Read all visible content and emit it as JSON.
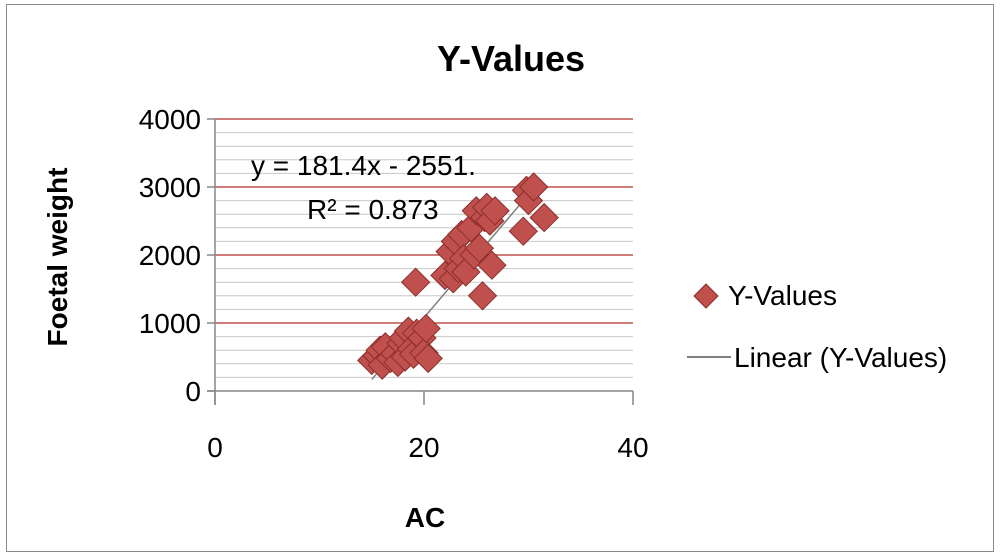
{
  "chart_data": {
    "type": "scatter",
    "title": "Y-Values",
    "xlabel": "AC",
    "ylabel": "Foetal weight",
    "xlim": [
      0,
      40
    ],
    "ylim": [
      0,
      4000
    ],
    "xticks": [
      "0",
      "20",
      "40"
    ],
    "yticks": [
      "0",
      "1000",
      "2000",
      "3000",
      "4000"
    ],
    "grid": {
      "major_y": true,
      "minor_y": true,
      "major_color": "#c0504d",
      "minor_color": "#c8c8c8"
    },
    "legend_position": "right",
    "series": [
      {
        "name": "Y-Values",
        "marker": "diamond",
        "color": "#c0504d",
        "points": [
          [
            15.0,
            450
          ],
          [
            15.5,
            520
          ],
          [
            15.8,
            600
          ],
          [
            16.0,
            380
          ],
          [
            16.3,
            650
          ],
          [
            16.8,
            480
          ],
          [
            17.2,
            550
          ],
          [
            17.5,
            420
          ],
          [
            17.8,
            700
          ],
          [
            18.0,
            780
          ],
          [
            18.2,
            500
          ],
          [
            18.5,
            880
          ],
          [
            18.8,
            620
          ],
          [
            19.0,
            540
          ],
          [
            19.2,
            1600
          ],
          [
            19.3,
            850
          ],
          [
            19.8,
            780
          ],
          [
            20.0,
            560
          ],
          [
            20.2,
            920
          ],
          [
            20.4,
            480
          ],
          [
            22.0,
            1700
          ],
          [
            22.5,
            2050
          ],
          [
            22.8,
            1650
          ],
          [
            23.0,
            2200
          ],
          [
            23.3,
            1800
          ],
          [
            23.6,
            2300
          ],
          [
            23.8,
            1950
          ],
          [
            24.0,
            1750
          ],
          [
            24.5,
            2400
          ],
          [
            24.8,
            2000
          ],
          [
            25.0,
            2650
          ],
          [
            25.3,
            2100
          ],
          [
            25.6,
            1400
          ],
          [
            25.8,
            2550
          ],
          [
            26.0,
            2700
          ],
          [
            26.3,
            2500
          ],
          [
            26.5,
            1850
          ],
          [
            26.8,
            2650
          ],
          [
            29.5,
            2350
          ],
          [
            29.8,
            2950
          ],
          [
            30.0,
            2800
          ],
          [
            30.5,
            3000
          ],
          [
            31.5,
            2550
          ]
        ]
      },
      {
        "name": "Linear (Y-Values)",
        "type": "trendline",
        "color": "#7f7f7f",
        "slope": 181.4,
        "intercept": -2551,
        "x_range": [
          15,
          31
        ]
      }
    ],
    "annotations": {
      "equation": "y = 181.4x - 2551.",
      "r_squared": "R² = 0.873"
    }
  }
}
